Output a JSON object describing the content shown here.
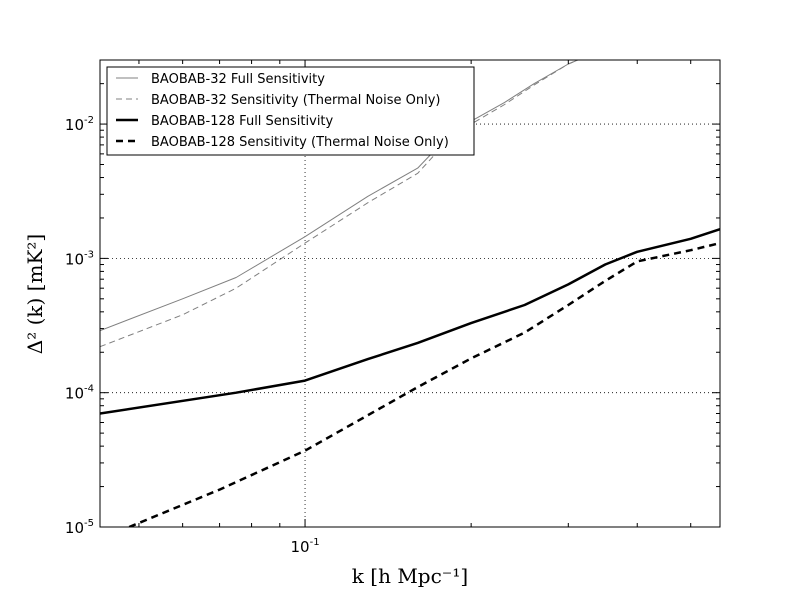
{
  "chart_data": {
    "type": "line",
    "xscale": "log",
    "yscale": "log",
    "xlim": [
      0.0425,
      0.565
    ],
    "ylim": [
      1e-05,
      0.03
    ],
    "xlabel": "k [h Mpc⁻¹]",
    "ylabel": "Δ² (k) [mK²]",
    "grid": true,
    "legend_position": "top-left",
    "x_ticks": [
      {
        "value": 0.1,
        "base": "10",
        "exp": "-1"
      }
    ],
    "y_ticks": [
      {
        "value": 1e-05,
        "base": "10",
        "exp": "-5"
      },
      {
        "value": 0.0001,
        "base": "10",
        "exp": "-4"
      },
      {
        "value": 0.001,
        "base": "10",
        "exp": "-3"
      },
      {
        "value": 0.01,
        "base": "10",
        "exp": "-2"
      }
    ],
    "series": [
      {
        "name": "BAOBAB-32 Full Sensitivity",
        "color": "#808080",
        "style": "solid",
        "x": [
          0.0425,
          0.06,
          0.075,
          0.1,
          0.13,
          0.16,
          0.18,
          0.2,
          0.23,
          0.26,
          0.3,
          0.33
        ],
        "y": [
          0.00029,
          0.0005,
          0.00072,
          0.00145,
          0.0029,
          0.0047,
          0.0078,
          0.0105,
          0.0145,
          0.02,
          0.028,
          0.033
        ]
      },
      {
        "name": "BAOBAB-32 Sensitivity (Thermal Noise Only)",
        "color": "#808080",
        "style": "dashed",
        "x": [
          0.0425,
          0.06,
          0.075,
          0.1,
          0.13,
          0.16,
          0.18,
          0.2,
          0.23,
          0.26,
          0.3,
          0.33
        ],
        "y": [
          0.00022,
          0.00038,
          0.0006,
          0.0013,
          0.0026,
          0.0043,
          0.0073,
          0.01,
          0.014,
          0.0195,
          0.028,
          0.033
        ]
      },
      {
        "name": "BAOBAB-128 Full Sensitivity",
        "color": "#000000",
        "style": "solid",
        "x": [
          0.0425,
          0.075,
          0.1,
          0.13,
          0.16,
          0.2,
          0.25,
          0.3,
          0.35,
          0.4,
          0.5,
          0.565
        ],
        "y": [
          7e-05,
          0.0001,
          0.000123,
          0.000178,
          0.000235,
          0.00033,
          0.00045,
          0.00064,
          0.0009,
          0.00112,
          0.0014,
          0.00165
        ]
      },
      {
        "name": "BAOBAB-128 Sensitivity (Thermal Noise Only)",
        "color": "#000000",
        "style": "dashed",
        "x": [
          0.048,
          0.07,
          0.1,
          0.13,
          0.16,
          0.2,
          0.25,
          0.3,
          0.35,
          0.4,
          0.5,
          0.565
        ],
        "y": [
          1e-05,
          1.9e-05,
          3.7e-05,
          6.8e-05,
          0.00011,
          0.00018,
          0.00028,
          0.00045,
          0.00068,
          0.00095,
          0.00115,
          0.0013
        ]
      }
    ]
  }
}
